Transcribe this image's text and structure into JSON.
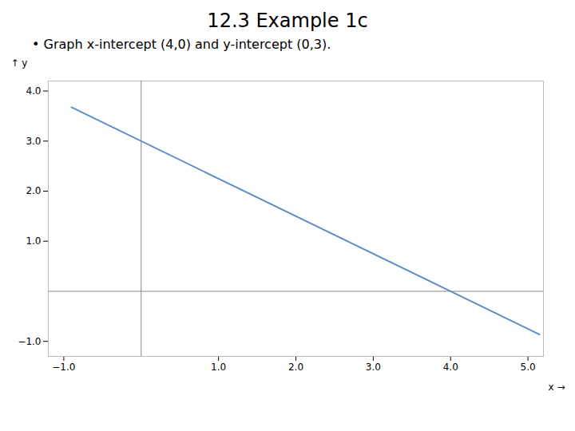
{
  "chart_data": {
    "type": "line",
    "title": "12.3 Example 1c",
    "subtitle": "• Graph x-intercept (4,0) and y-intercept (0,3).",
    "x": [
      -0.9,
      5.15
    ],
    "values": [
      3.675,
      -0.8625
    ],
    "color": "#5b8ec7",
    "xlabel": "x",
    "ylabel": "y",
    "xlim": [
      -1.2,
      5.2
    ],
    "ylim": [
      -1.3,
      4.2
    ],
    "xticks": [
      -1,
      1,
      2,
      3,
      4,
      5
    ],
    "yticks": [
      -1,
      1,
      2,
      3,
      4
    ]
  }
}
